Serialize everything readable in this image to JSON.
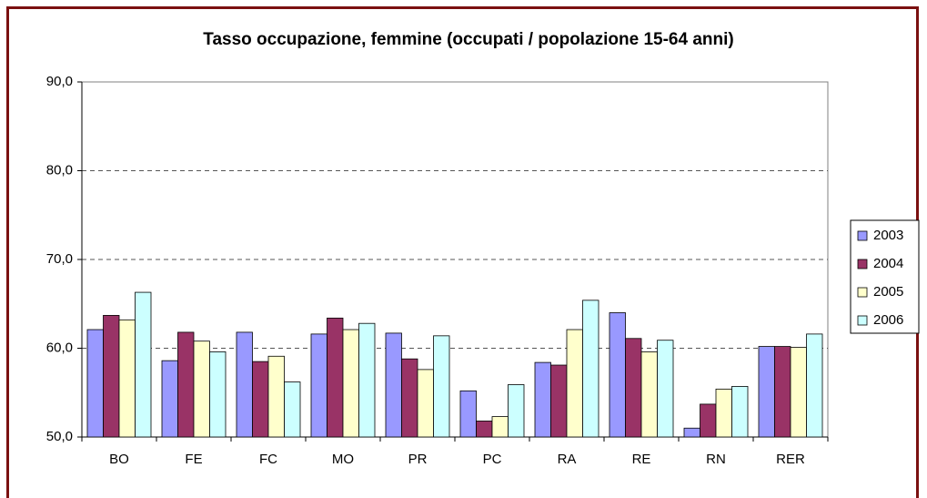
{
  "chart_data": {
    "type": "bar",
    "title": "Tasso occupazione, femmine (occupati / popolazione 15-64 anni)",
    "categories": [
      "BO",
      "FE",
      "FC",
      "MO",
      "PR",
      "PC",
      "RA",
      "RE",
      "RN",
      "RER"
    ],
    "series": [
      {
        "name": "2003",
        "color": "#9999ff",
        "values": [
          62.1,
          58.6,
          61.8,
          61.6,
          61.7,
          55.2,
          58.4,
          64.0,
          51.0,
          60.2
        ]
      },
      {
        "name": "2004",
        "color": "#993366",
        "values": [
          63.7,
          61.8,
          58.5,
          63.4,
          58.8,
          51.8,
          58.1,
          61.1,
          53.7,
          60.2
        ]
      },
      {
        "name": "2005",
        "color": "#ffffcc",
        "values": [
          63.2,
          60.8,
          59.1,
          62.1,
          57.6,
          52.3,
          62.1,
          59.6,
          55.4,
          60.1
        ]
      },
      {
        "name": "2006",
        "color": "#ccffff",
        "values": [
          66.3,
          59.6,
          56.2,
          62.8,
          61.4,
          55.9,
          65.4,
          60.9,
          55.7,
          61.6
        ]
      }
    ],
    "ylim": [
      50,
      90
    ],
    "yticks": [
      {
        "value": 50,
        "label": "50,0"
      },
      {
        "value": 60,
        "label": "60,0"
      },
      {
        "value": 70,
        "label": "70,0"
      },
      {
        "value": 80,
        "label": "80,0"
      },
      {
        "value": 90,
        "label": "90,0"
      }
    ],
    "grid": true,
    "legend": "right"
  }
}
